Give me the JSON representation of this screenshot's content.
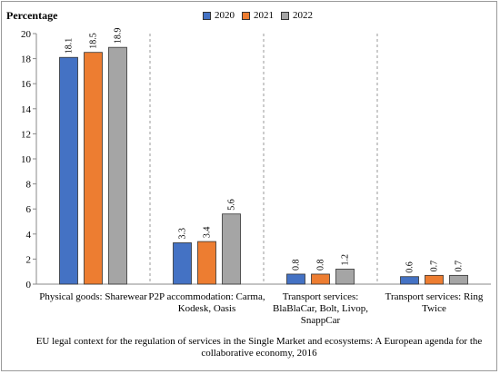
{
  "chart_data": {
    "type": "bar",
    "ylabel": "Percentage",
    "xlabel": "EU legal context for the regulation of services in the Single Market and ecosystems: A European agenda for the collaborative economy, 2016",
    "ylim": [
      0,
      20
    ],
    "yticks": [
      0,
      2,
      4,
      6,
      8,
      10,
      12,
      14,
      16,
      18,
      20
    ],
    "grid": "vertical-dashed-separators",
    "legend_position": "top-center",
    "categories": [
      "Physical goods: Sharewear",
      "P2P accommodation: Carma, Kodesk, Oasis",
      "Transport services: BlaBlaCar, Bolt, Livop, SnappCar",
      "Transport services: Ring Twice"
    ],
    "series": [
      {
        "name": "2020",
        "color": "#4472C4",
        "values": [
          18.1,
          3.3,
          0.8,
          0.6
        ]
      },
      {
        "name": "2021",
        "color": "#ED7D31",
        "values": [
          18.5,
          3.4,
          0.8,
          0.7
        ]
      },
      {
        "name": "2022",
        "color": "#A5A5A5",
        "values": [
          18.9,
          5.6,
          1.2,
          0.7
        ]
      }
    ]
  }
}
